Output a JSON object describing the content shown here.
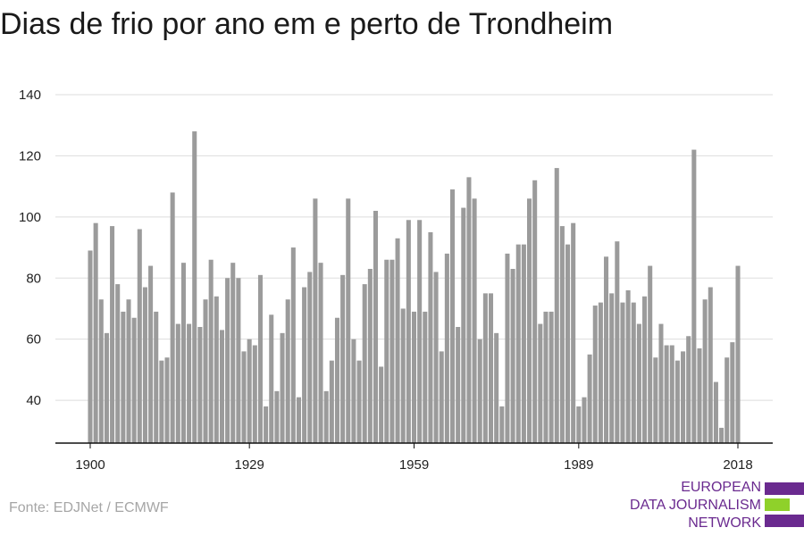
{
  "title": "Dias de frio por ano em e perto de Trondheim",
  "source": "Fonte: EDJNet / ECMWF",
  "logo": {
    "lines": [
      "EUROPEAN",
      "DATA JOURNALISM",
      "NETWORK"
    ],
    "colors": {
      "purple": "#6a2a8f",
      "green": "#8fd12a"
    }
  },
  "colors": {
    "bar": "#9b9b9b",
    "grid": "#dddddd",
    "axis": "#111111"
  },
  "chart_data": {
    "type": "bar",
    "title": "Dias de frio por ano em e perto de Trondheim",
    "xlabel": "",
    "ylabel": "",
    "ylim": [
      26,
      140
    ],
    "yticks": [
      40,
      60,
      80,
      100,
      120,
      140
    ],
    "xticks": [
      1900,
      1929,
      1959,
      1989,
      2018
    ],
    "grid": true,
    "x": [
      1900,
      1901,
      1902,
      1903,
      1904,
      1905,
      1906,
      1907,
      1908,
      1909,
      1910,
      1911,
      1912,
      1913,
      1914,
      1915,
      1916,
      1917,
      1918,
      1919,
      1920,
      1921,
      1922,
      1923,
      1924,
      1925,
      1926,
      1927,
      1928,
      1929,
      1930,
      1931,
      1932,
      1933,
      1934,
      1935,
      1936,
      1937,
      1938,
      1939,
      1940,
      1941,
      1942,
      1943,
      1944,
      1945,
      1946,
      1947,
      1948,
      1949,
      1950,
      1951,
      1952,
      1953,
      1954,
      1955,
      1956,
      1957,
      1958,
      1959,
      1960,
      1961,
      1962,
      1963,
      1964,
      1965,
      1966,
      1967,
      1968,
      1969,
      1970,
      1971,
      1972,
      1973,
      1974,
      1975,
      1976,
      1977,
      1978,
      1979,
      1980,
      1981,
      1982,
      1983,
      1984,
      1985,
      1986,
      1987,
      1988,
      1989,
      1990,
      1991,
      1992,
      1993,
      1994,
      1995,
      1996,
      1997,
      1998,
      1999,
      2000,
      2001,
      2002,
      2003,
      2004,
      2005,
      2006,
      2007,
      2008,
      2009,
      2010,
      2011,
      2012,
      2013,
      2014,
      2015,
      2016,
      2017,
      2018
    ],
    "values": [
      89,
      98,
      73,
      62,
      97,
      78,
      69,
      73,
      67,
      96,
      77,
      84,
      69,
      53,
      54,
      108,
      65,
      85,
      65,
      128,
      64,
      73,
      86,
      74,
      63,
      80,
      85,
      80,
      56,
      60,
      58,
      81,
      38,
      68,
      43,
      62,
      73,
      90,
      41,
      77,
      82,
      106,
      85,
      43,
      53,
      67,
      81,
      106,
      60,
      53,
      78,
      83,
      102,
      51,
      86,
      86,
      93,
      70,
      99,
      69,
      99,
      69,
      95,
      82,
      56,
      88,
      109,
      64,
      103,
      113,
      106,
      60,
      75,
      75,
      62,
      38,
      88,
      83,
      91,
      91,
      106,
      112,
      65,
      69,
      69,
      116,
      97,
      91,
      98,
      38,
      41,
      55,
      71,
      72,
      87,
      75,
      92,
      72,
      76,
      72,
      65,
      74,
      84,
      54,
      65,
      58,
      58,
      53,
      56,
      61,
      122,
      57,
      73,
      77,
      46,
      31,
      54,
      59,
      84
    ]
  }
}
